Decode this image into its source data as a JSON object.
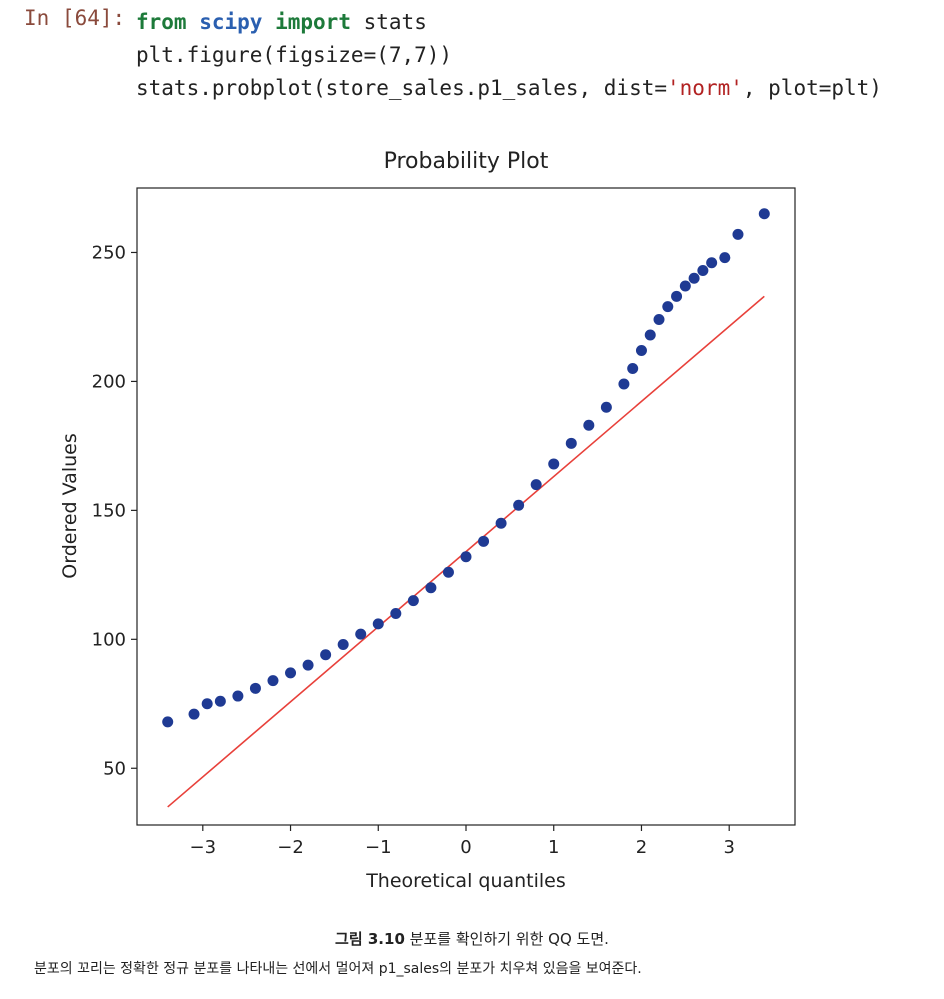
{
  "notebook": {
    "prompt": "In [64]:",
    "code_line1_kw1": "from",
    "code_line1_mod": "scipy",
    "code_line1_kw2": "import",
    "code_line1_rest": "stats",
    "code_line2": "plt.figure(figsize=(7,7))",
    "code_line3_a": "stats.probplot(store_sales.p1_sales, dist=",
    "code_line3_str": "'norm'",
    "code_line3_b": ", plot=plt)"
  },
  "caption": {
    "label": "그림 3.10",
    "title": "분포를 확인하기 위한 QQ 도면.",
    "body": "분포의 꼬리는 정확한 정규 분포를 나타내는 선에서 멀어져 p1_sales의 분포가 치우쳐 있음을 보여준다."
  },
  "colors": {
    "points": "#1f3a93",
    "fit_line": "#e8403a"
  },
  "chart_data": {
    "type": "scatter",
    "title": "Probability Plot",
    "xlabel": "Theoretical quantiles",
    "ylabel": "Ordered Values",
    "xlim": [
      -3.75,
      3.75
    ],
    "ylim": [
      28,
      275
    ],
    "xticks": [
      -3,
      -2,
      -1,
      0,
      1,
      2,
      3
    ],
    "xtick_labels": [
      "−3",
      "−2",
      "−1",
      "0",
      "1",
      "2",
      "3"
    ],
    "yticks": [
      50,
      100,
      150,
      200,
      250
    ],
    "ytick_labels": [
      "50",
      "100",
      "150",
      "200",
      "250"
    ],
    "grid": false,
    "fit_line": {
      "x": [
        -3.4,
        3.4
      ],
      "y": [
        35,
        233
      ]
    },
    "series": [
      {
        "x": [
          -3.4,
          -3.1,
          -2.95,
          -2.8,
          -2.6,
          -2.4,
          -2.2,
          -2.0,
          -1.8,
          -1.6,
          -1.4,
          -1.2,
          -1.0,
          -0.8,
          -0.6,
          -0.4,
          -0.2,
          0.0,
          0.2,
          0.4,
          0.6,
          0.8,
          1.0,
          1.2,
          1.4,
          1.6,
          1.8,
          1.9,
          2.0,
          2.1,
          2.2,
          2.3,
          2.4,
          2.5,
          2.6,
          2.7,
          2.8,
          2.95,
          3.1,
          3.4
        ],
        "y": [
          68,
          71,
          75,
          76,
          78,
          81,
          84,
          87,
          90,
          94,
          98,
          102,
          106,
          110,
          115,
          120,
          126,
          132,
          138,
          145,
          152,
          160,
          168,
          176,
          183,
          190,
          199,
          205,
          212,
          218,
          224,
          229,
          233,
          237,
          240,
          243,
          246,
          248,
          257,
          265
        ]
      }
    ]
  }
}
